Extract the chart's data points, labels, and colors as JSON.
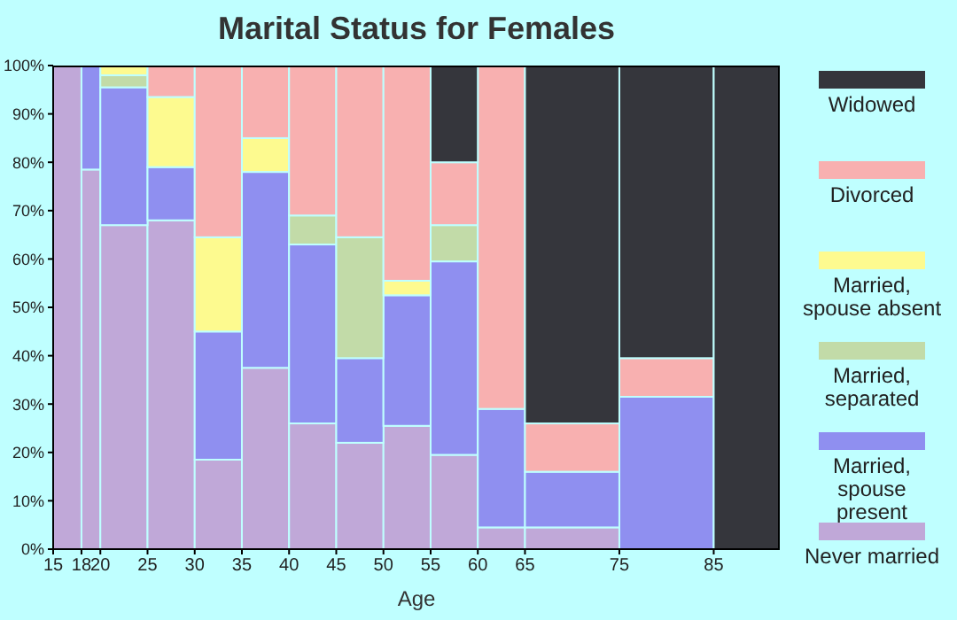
{
  "chart_data": {
    "type": "bar",
    "title": "Marital Status for Females",
    "xlabel": "Age",
    "stacked": true,
    "legend": "right",
    "x": [
      16.5,
      19,
      22.5,
      27.5,
      32.5,
      37.5,
      42.5,
      47.5,
      52.5,
      57.5,
      62.5,
      70,
      80,
      88.5
    ],
    "xlim": [
      15,
      92
    ],
    "xticks": [
      15,
      18,
      20,
      25,
      30,
      35,
      40,
      45,
      50,
      55,
      60,
      65,
      75,
      85
    ],
    "ylim": [
      0,
      100
    ],
    "yticks": [
      {
        "value": 0,
        "label": "0%"
      },
      {
        "value": 10,
        "label": "10%"
      },
      {
        "value": 20,
        "label": "20%"
      },
      {
        "value": 30,
        "label": "30%"
      },
      {
        "value": 40,
        "label": "40%"
      },
      {
        "value": 50,
        "label": "50%"
      },
      {
        "value": 60,
        "label": "60%"
      },
      {
        "value": 70,
        "label": "70%"
      },
      {
        "value": 80,
        "label": "80%"
      },
      {
        "value": 90,
        "label": "90%"
      },
      {
        "value": 100,
        "label": "100%"
      }
    ],
    "grid": false,
    "series": [
      {
        "name": "Never married",
        "color": "#c0a8d8",
        "values": [
          100,
          78.5,
          67,
          68,
          18.5,
          37.5,
          26,
          22,
          25.5,
          19.5,
          4.5,
          4.5,
          0,
          0
        ]
      },
      {
        "name": "Married, spouse present",
        "color": "#8f8ff0",
        "values": [
          0,
          21.5,
          28.5,
          11,
          26.5,
          40.5,
          37,
          17.5,
          27,
          40,
          24.5,
          11.5,
          31.5,
          0
        ]
      },
      {
        "name": "Married, separated",
        "color": "#c2dba8",
        "values": [
          0,
          0,
          2.5,
          0,
          0,
          0,
          6,
          25,
          0,
          7.5,
          0,
          0,
          0,
          0
        ]
      },
      {
        "name": "Married, spouse absent",
        "color": "#fdfa8f",
        "values": [
          0,
          0,
          2,
          14.5,
          19.5,
          7,
          0,
          0,
          3,
          0,
          0,
          0,
          0,
          0
        ]
      },
      {
        "name": "Divorced",
        "color": "#f8b0b0",
        "values": [
          0,
          0,
          0,
          6.5,
          35.5,
          15,
          31,
          35.5,
          44.5,
          13,
          71,
          10,
          8,
          0
        ]
      },
      {
        "name": "Widowed",
        "color": "#35363c",
        "values": [
          0,
          0,
          0,
          0,
          0,
          0,
          0,
          0,
          0,
          20,
          0,
          74,
          60.5,
          100
        ]
      }
    ]
  }
}
